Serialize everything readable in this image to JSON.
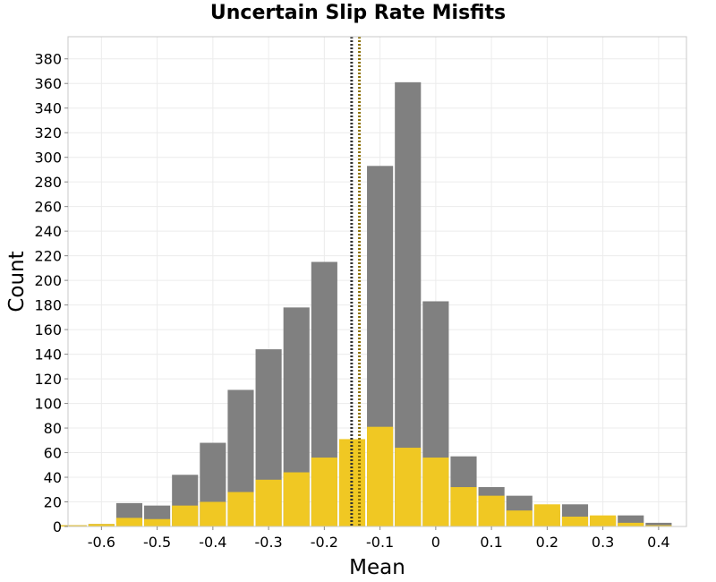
{
  "chart_data": {
    "type": "bar",
    "title": "Uncertain Slip Rate Misfits",
    "xlabel": "Mean",
    "ylabel": "Count",
    "bin_width": 0.05,
    "bin_centers": [
      -0.65,
      -0.6,
      -0.55,
      -0.5,
      -0.45,
      -0.4,
      -0.35,
      -0.3,
      -0.25,
      -0.2,
      -0.15,
      -0.1,
      -0.05,
      0.0,
      0.05,
      0.1,
      0.15,
      0.2,
      0.25,
      0.3,
      0.35,
      0.4
    ],
    "series": [
      {
        "values": [
          1,
          2,
          19,
          17,
          42,
          68,
          111,
          144,
          178,
          215,
          56,
          293,
          361,
          183,
          57,
          32,
          25,
          13,
          18,
          8,
          9,
          3
        ]
      },
      {
        "values": [
          1,
          2,
          7,
          6,
          17,
          20,
          28,
          38,
          44,
          56,
          71,
          81,
          64,
          56,
          32,
          25,
          13,
          18,
          8,
          9,
          3,
          1
        ]
      }
    ],
    "reference_lines": [
      {
        "x": -0.151,
        "color": "#333333"
      },
      {
        "x": -0.137,
        "color": "#8b7000"
      }
    ],
    "xlim": [
      -0.66,
      0.45
    ],
    "ylim": [
      0,
      398
    ],
    "x_ticks": [
      -0.6,
      -0.5,
      -0.4,
      -0.3,
      -0.2,
      -0.1,
      0,
      0.1,
      0.2,
      0.3,
      0.4
    ],
    "x_tick_labels": [
      "-0.6",
      "-0.5",
      "-0.4",
      "-0.3",
      "-0.2",
      "-0.1",
      "0",
      "0.1",
      "0.2",
      "0.3",
      "0.4"
    ],
    "y_ticks": [
      0,
      20,
      40,
      60,
      80,
      100,
      120,
      140,
      160,
      180,
      200,
      220,
      240,
      260,
      280,
      300,
      320,
      340,
      360,
      380
    ],
    "y_tick_labels": [
      "0",
      "20",
      "40",
      "60",
      "80",
      "100",
      "120",
      "140",
      "160",
      "180",
      "200",
      "220",
      "240",
      "260",
      "280",
      "300",
      "320",
      "340",
      "360",
      "380"
    ],
    "grid": true,
    "colors": {
      "series_0": "#808080",
      "series_1": "#f0c823"
    }
  }
}
